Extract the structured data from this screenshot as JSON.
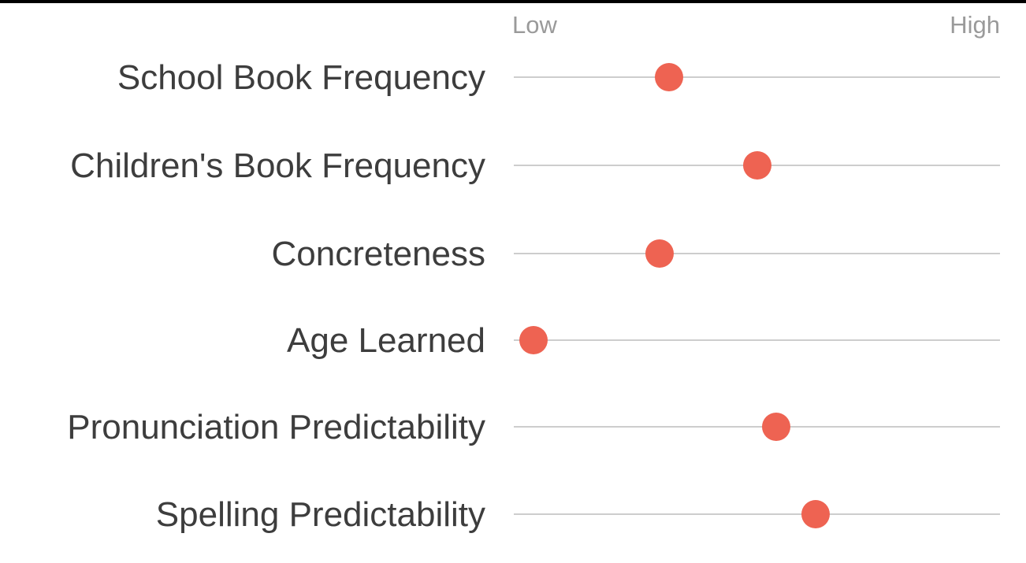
{
  "colors": {
    "background": "#ffffff",
    "top_bar": "#000000",
    "dot": "#ee6352",
    "row_line": "#cdcdcd",
    "row_label_text": "#3d3d3d",
    "axis_label_text": "#9a9a9a"
  },
  "chart_data": {
    "type": "scatter",
    "variant": "horizontal-dot-plot",
    "title": "",
    "x_axis": {
      "min_label": "Low",
      "max_label": "High",
      "range": [
        0,
        1
      ],
      "numeric_ticks_visible": false
    },
    "legend": "none",
    "grid": "per-row horizontal track lines only",
    "rows": [
      {
        "label": "School Book Frequency",
        "value": 0.32
      },
      {
        "label": "Children's Book Frequency",
        "value": 0.5
      },
      {
        "label": "Concreteness",
        "value": 0.3
      },
      {
        "label": "Age Learned",
        "value": 0.04
      },
      {
        "label": "Pronunciation Predictability",
        "value": 0.54
      },
      {
        "label": "Spelling Predictability",
        "value": 0.62
      }
    ]
  }
}
